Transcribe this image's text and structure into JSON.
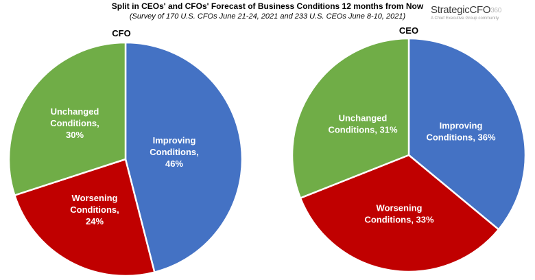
{
  "title": "Split in CEOs' and CFOs' Forecast of Business Conditions 12 months from Now",
  "subtitle": "(Survey of 170 U.S. CFOs June 21-24, 2021 and 233 U.S. CEOs June 8-10, 2021)",
  "logo": {
    "name": "StrategicCFO",
    "suffix": "360",
    "tagline": "A Chief Executive Group community"
  },
  "colors": {
    "improving": "#4472C4",
    "worsening": "#C00000",
    "unchanged": "#70AD47",
    "label": "#ffffff"
  },
  "chart_data": [
    {
      "type": "pie",
      "title": "CFO",
      "slices": [
        {
          "label_lines": [
            "Improving",
            "Conditions,",
            "46%"
          ],
          "value": 46,
          "category": "improving"
        },
        {
          "label_lines": [
            "Worsening",
            "Conditions,",
            "24%"
          ],
          "value": 24,
          "category": "worsening"
        },
        {
          "label_lines": [
            "Unchanged",
            "Conditions,",
            "30%"
          ],
          "value": 30,
          "category": "unchanged"
        }
      ]
    },
    {
      "type": "pie",
      "title": "CEO",
      "slices": [
        {
          "label_lines": [
            "Improving",
            "Conditions, 36%"
          ],
          "value": 36,
          "category": "improving"
        },
        {
          "label_lines": [
            "Worsening",
            "Conditions, 33%"
          ],
          "value": 33,
          "category": "worsening"
        },
        {
          "label_lines": [
            "Unchanged",
            "Conditions, 31%"
          ],
          "value": 31,
          "category": "unchanged"
        }
      ]
    }
  ]
}
